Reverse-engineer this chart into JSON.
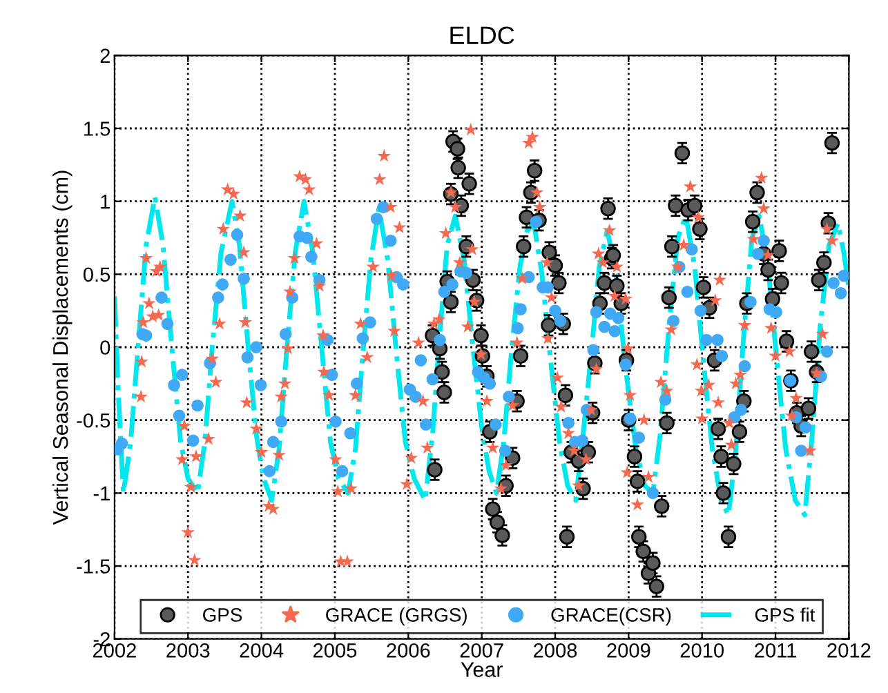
{
  "chart_data": {
    "type": "scatter",
    "title": "ELDC",
    "xlabel": "Year",
    "ylabel": "Vertical Seasonal Displacements (cm)",
    "xlim": [
      2002,
      2012
    ],
    "xticks": [
      2002,
      2003,
      2004,
      2005,
      2006,
      2007,
      2008,
      2009,
      2010,
      2011,
      2012
    ],
    "ylim": [
      -2,
      2
    ],
    "yticks": [
      -2,
      -1.5,
      -1,
      -0.5,
      0,
      0.5,
      1,
      1.5,
      2
    ],
    "grid": true,
    "legend": "bottom",
    "series": [
      {
        "name": "GPS",
        "type": "scatter",
        "marker": "circle",
        "color": "#5a5a5a",
        "x": [
          2006.36,
          2006.33,
          2006.43,
          2006.46,
          2006.49,
          2006.53,
          2006.58,
          2006.61,
          2006.67,
          2006.68,
          2006.58,
          2006.72,
          2006.79,
          2006.83,
          2006.88,
          2006.93,
          2006.99,
          2007.01,
          2007.07,
          2007.11,
          2007.15,
          2007.21,
          2007.28,
          2007.33,
          2007.42,
          2007.48,
          2007.53,
          2007.57,
          2007.61,
          2007.67,
          2007.72,
          2007.78,
          2007.92,
          2008.0,
          2008.05,
          2007.91,
          2008.11,
          2008.14,
          2008.22,
          2008.32,
          2008.38,
          2008.16,
          2008.45,
          2008.51,
          2008.54,
          2008.61,
          2008.67,
          2008.72,
          2008.77,
          2008.84,
          2008.79,
          2008.9,
          2008.97,
          2009.0,
          2009.08,
          2009.12,
          2009.14,
          2009.2,
          2009.27,
          2009.33,
          2009.38,
          2009.45,
          2009.52,
          2009.55,
          2009.59,
          2009.64,
          2009.73,
          2009.81,
          2009.9,
          2009.97,
          2010.02,
          2010.1,
          2010.17,
          2010.22,
          2010.26,
          2010.29,
          2010.36,
          2010.43,
          2010.51,
          2010.57,
          2010.61,
          2010.69,
          2010.75,
          2010.84,
          2010.9,
          2010.96,
          2011.05,
          2011.08,
          2011.15,
          2011.21,
          2011.29,
          2011.35,
          2011.45,
          2011.49,
          2011.56,
          2011.59,
          2011.66,
          2011.72,
          2011.77
        ],
        "values": [
          -0.84,
          0.08,
          -0.01,
          -0.17,
          -0.31,
          0.45,
          0.31,
          1.41,
          1.36,
          1.23,
          1.05,
          0.97,
          0.69,
          1.12,
          0.46,
          0.32,
          0.08,
          -0.06,
          -0.2,
          -0.58,
          -1.11,
          -1.2,
          -1.29,
          -0.95,
          -0.76,
          -0.37,
          -0.06,
          0.69,
          0.89,
          1.06,
          1.21,
          0.87,
          0.65,
          0.56,
          0.44,
          0.15,
          0.16,
          -0.33,
          -0.72,
          -0.78,
          -0.97,
          -1.3,
          -0.72,
          -0.45,
          -0.11,
          0.3,
          0.44,
          0.95,
          0.61,
          0.42,
          0.63,
          0.3,
          -0.09,
          -0.5,
          -0.75,
          -0.92,
          -1.3,
          -1.4,
          -1.55,
          -1.48,
          -1.64,
          -1.09,
          -0.52,
          0.34,
          0.69,
          0.97,
          1.33,
          0.94,
          0.97,
          0.81,
          0.41,
          0.27,
          -0.09,
          -0.56,
          -0.75,
          -1.0,
          -1.3,
          -0.8,
          -0.58,
          -0.37,
          0.3,
          0.86,
          1.06,
          0.64,
          0.53,
          0.33,
          0.66,
          0.44,
          0.04,
          -0.23,
          -0.45,
          -0.54,
          -0.42,
          -0.03,
          -0.17,
          0.46,
          0.58,
          0.85,
          1.4
        ],
        "errors": [
          0.07,
          0.07,
          0.07,
          0.07,
          0.07,
          0.07,
          0.07,
          0.07,
          0.07,
          0.07,
          0.07,
          0.07,
          0.07,
          0.07,
          0.07,
          0.07,
          0.07,
          0.07,
          0.07,
          0.07,
          0.07,
          0.07,
          0.07,
          0.07,
          0.07,
          0.07,
          0.07,
          0.07,
          0.07,
          0.07,
          0.07,
          0.07,
          0.07,
          0.07,
          0.07,
          0.07,
          0.07,
          0.07,
          0.07,
          0.07,
          0.07,
          0.07,
          0.07,
          0.07,
          0.07,
          0.07,
          0.07,
          0.07,
          0.07,
          0.07,
          0.07,
          0.07,
          0.07,
          0.07,
          0.07,
          0.07,
          0.07,
          0.07,
          0.07,
          0.07,
          0.07,
          0.07,
          0.07,
          0.07,
          0.07,
          0.07,
          0.07,
          0.07,
          0.07,
          0.07,
          0.07,
          0.07,
          0.07,
          0.07,
          0.07,
          0.07,
          0.07,
          0.07,
          0.07,
          0.07,
          0.07,
          0.07,
          0.07,
          0.07,
          0.07,
          0.07,
          0.07,
          0.07,
          0.07,
          0.07,
          0.07,
          0.07,
          0.07,
          0.07,
          0.07,
          0.07,
          0.07,
          0.07,
          0.07
        ]
      },
      {
        "name": "GRACE (GRGS)",
        "type": "scatter",
        "marker": "star",
        "color": "#f4694f",
        "x": [
          2002.36,
          2002.37,
          2002.39,
          2002.43,
          2002.47,
          2002.52,
          2002.57,
          2002.6,
          2002.62,
          2002.92,
          2002.95,
          2003.0,
          2003.04,
          2003.09,
          2003.11,
          2003.28,
          2003.33,
          2003.38,
          2003.43,
          2003.48,
          2003.54,
          2003.62,
          2003.71,
          2003.76,
          2003.78,
          2003.8,
          2003.93,
          2004.0,
          2004.1,
          2004.16,
          2004.24,
          2004.27,
          2004.32,
          2004.36,
          2004.39,
          2004.45,
          2004.52,
          2004.6,
          2004.65,
          2004.75,
          2004.79,
          2004.84,
          2004.85,
          2004.92,
          2005.01,
          2005.04,
          2005.08,
          2005.17,
          2005.22,
          2005.28,
          2005.35,
          2005.44,
          2005.52,
          2005.61,
          2005.67,
          2005.76,
          2005.88,
          2005.77,
          2005.81,
          2006.04,
          2005.98,
          2006.14,
          2006.2,
          2006.26,
          2006.35,
          2006.42,
          2006.51,
          2006.58,
          2006.64,
          2006.7,
          2006.85,
          2006.81,
          2006.87,
          2006.9,
          2006.99,
          2007.07,
          2007.15,
          2007.26,
          2007.33,
          2007.42,
          2007.48,
          2007.55,
          2007.64,
          2007.69,
          2007.75,
          2007.79,
          2007.89,
          2007.95,
          2007.9,
          2008.03,
          2008.08,
          2008.18,
          2008.26,
          2008.32,
          2008.42,
          2008.49,
          2008.56,
          2008.59,
          2008.65,
          2008.74,
          2008.81,
          2008.84,
          2008.96,
          2008.99,
          2009.02,
          2008.98,
          2009.12,
          2009.21,
          2009.27,
          2009.44,
          2009.52,
          2009.58,
          2009.67,
          2009.75,
          2009.84,
          2009.95,
          2010.18,
          2010.24,
          2010.09,
          2009.93,
          2009.99,
          2010.0,
          2010.22,
          2010.37,
          2010.4,
          2010.46,
          2010.52,
          2010.58,
          2010.7,
          2010.81,
          2010.84,
          2010.9,
          2010.94,
          2011.0,
          2011.19,
          2011.22,
          2011.28,
          2011.47,
          2011.56,
          2011.64,
          2011.7,
          2011.77
        ],
        "values": [
          -0.34,
          -0.1,
          0.17,
          0.61,
          0.3,
          0.21,
          0.52,
          0.22,
          0.55,
          -0.77,
          -0.54,
          -1.27,
          -0.96,
          -1.46,
          -0.75,
          -0.63,
          -0.08,
          -0.24,
          0.16,
          0.81,
          1.08,
          1.05,
          0.9,
          0.65,
          0.17,
          -0.38,
          -0.56,
          -0.72,
          -1.09,
          -1.11,
          -0.74,
          -0.34,
          -0.25,
          -0.01,
          0.38,
          0.61,
          1.17,
          1.15,
          1.08,
          0.71,
          0.42,
          0.08,
          -0.17,
          -0.33,
          -0.77,
          -0.99,
          -1.47,
          -1.47,
          -0.97,
          -0.33,
          0.16,
          -0.07,
          0.55,
          1.15,
          1.31,
          0.96,
          0.82,
          0.49,
          0.11,
          -0.76,
          -0.94,
          0.03,
          -0.37,
          -0.69,
          0.16,
          0.19,
          0.78,
          1.06,
          0.96,
          0.58,
          1.49,
          0.14,
          0.67,
          0.31,
          -0.05,
          -0.37,
          -0.69,
          -0.97,
          -0.81,
          -0.4,
          0.03,
          0.47,
          1.4,
          1.44,
          1.06,
          0.96,
          0.58,
          0.34,
          0.06,
          -0.21,
          -0.41,
          -0.59,
          -0.71,
          -0.95,
          -0.77,
          -0.43,
          -0.15,
          0.64,
          0.58,
          0.8,
          0.35,
          0.55,
          0.33,
          -0.01,
          -0.33,
          -0.86,
          -1.08,
          -0.5,
          -0.89,
          -0.24,
          -0.3,
          0.12,
          0.55,
          0.7,
          1.1,
          0.89,
          0.32,
          0.46,
          -0.26,
          -0.12,
          -0.3,
          -0.49,
          -0.38,
          -0.52,
          -0.67,
          -0.25,
          -0.19,
          0.15,
          0.74,
          1.16,
          0.95,
          0.63,
          0.13,
          -0.06,
          -0.03,
          -0.47,
          -0.35,
          -0.71,
          -0.18,
          0.09,
          0.81,
          0.73
        ]
      },
      {
        "name": "GRACE(CSR)",
        "type": "scatter",
        "marker": "circle",
        "color": "#3fa9f5",
        "x": [
          2002.04,
          2002.1,
          2002.38,
          2002.43,
          2002.64,
          2002.72,
          2002.81,
          2002.88,
          2002.92,
          2003.07,
          2003.13,
          2003.3,
          2003.41,
          2003.47,
          2003.58,
          2003.67,
          2003.76,
          2003.81,
          2003.93,
          2003.99,
          2004.11,
          2004.16,
          2004.27,
          2004.33,
          2004.42,
          2004.52,
          2004.62,
          2004.68,
          2004.79,
          2004.9,
          2004.96,
          2005.01,
          2005.1,
          2005.21,
          2005.3,
          2005.38,
          2005.48,
          2005.57,
          2005.66,
          2005.76,
          2005.84,
          2005.93,
          2006.02,
          2006.1,
          2006.17,
          2006.24,
          2006.33,
          2006.43,
          2006.49,
          2006.6,
          2006.71,
          2006.79,
          2006.95,
          2007.03,
          2007.11,
          2007.19,
          2007.32,
          2007.37,
          2007.49,
          2007.53,
          2007.64,
          2007.74,
          2007.83,
          2007.9,
          2008.0,
          2008.07,
          2008.18,
          2008.27,
          2008.37,
          2008.43,
          2008.52,
          2008.56,
          2008.67,
          2008.75,
          2008.81,
          2008.86,
          2008.96,
          2009.02,
          2009.14,
          2009.33,
          2009.5,
          2009.61,
          2009.69,
          2009.8,
          2009.86,
          2009.98,
          2010.06,
          2010.21,
          2010.27,
          2010.44,
          2010.53,
          2010.58,
          2010.66,
          2010.76,
          2010.84,
          2010.92,
          2011.01,
          2011.2,
          2011.28,
          2011.35,
          2011.41,
          2011.62,
          2011.7,
          2011.79,
          2011.89,
          2011.93
        ],
        "values": [
          -0.7,
          -0.66,
          0.09,
          0.08,
          0.34,
          0.16,
          -0.26,
          -0.47,
          -0.19,
          -0.64,
          -0.4,
          -0.11,
          0.34,
          0.43,
          0.6,
          0.77,
          0.47,
          -0.07,
          0.0,
          -0.26,
          -0.85,
          -0.65,
          -0.51,
          0.09,
          0.34,
          0.76,
          0.75,
          0.62,
          0.46,
          0.05,
          -0.19,
          -0.51,
          -0.85,
          -0.59,
          -0.25,
          0.06,
          0.17,
          0.88,
          0.96,
          0.73,
          0.48,
          0.43,
          -0.29,
          -0.34,
          -0.09,
          -0.53,
          -0.22,
          0.05,
          0.38,
          0.43,
          0.52,
          0.51,
          -0.17,
          -0.21,
          -0.25,
          -0.53,
          -0.71,
          -0.34,
          0.13,
          0.26,
          0.48,
          0.86,
          0.41,
          0.41,
          0.25,
          0.18,
          -0.52,
          -0.65,
          -0.64,
          -0.43,
          -0.02,
          0.24,
          0.14,
          0.23,
          0.11,
          0.2,
          -0.12,
          -0.49,
          -0.62,
          -1.0,
          -0.36,
          0.18,
          0.55,
          0.38,
          0.67,
          0.25,
          0.05,
          0.05,
          -0.06,
          -0.48,
          -0.43,
          -0.13,
          0.31,
          0.64,
          0.73,
          0.26,
          0.24,
          -0.23,
          -0.48,
          -0.71,
          -0.55,
          -0.2,
          -0.03,
          0.44,
          0.37,
          0.49
        ]
      },
      {
        "name": "GPS fit",
        "type": "line",
        "marker": "none",
        "line_style": "dashed",
        "color": "#00e8ee",
        "x": [
          2002.0,
          2002.05,
          2002.12,
          2002.22,
          2002.32,
          2002.43,
          2002.55,
          2002.66,
          2002.78,
          2002.9,
          2003.0,
          2003.13,
          2003.23,
          2003.33,
          2003.45,
          2003.6,
          2003.7,
          2003.82,
          2003.93,
          2004.03,
          2004.14,
          2004.24,
          2004.34,
          2004.46,
          2004.58,
          2004.7,
          2004.82,
          2004.94,
          2005.05,
          2005.18,
          2005.28,
          2005.38,
          2005.49,
          2005.6,
          2005.72,
          2005.84,
          2005.96,
          2006.08,
          2006.23,
          2006.33,
          2006.43,
          2006.53,
          2006.64,
          2006.76,
          2006.88,
          2007.0,
          2007.1,
          2007.2,
          2007.3,
          2007.41,
          2007.52,
          2007.62,
          2007.71,
          2007.82,
          2007.94,
          2008.06,
          2008.17,
          2008.28,
          2008.38,
          2008.5,
          2008.6,
          2008.71,
          2008.83,
          2008.96,
          2009.1,
          2009.22,
          2009.33,
          2009.43,
          2009.55,
          2009.67,
          2009.78,
          2009.9,
          2010.02,
          2010.14,
          2010.26,
          2010.36,
          2010.46,
          2010.57,
          2010.68,
          2010.78,
          2010.9,
          2011.02,
          2011.14,
          2011.27,
          2011.4,
          2011.5,
          2011.61,
          2011.73,
          2011.85,
          2011.93,
          2012.0
        ],
        "values": [
          0.35,
          -0.3,
          -1.0,
          -0.65,
          0.0,
          0.7,
          1.03,
          0.7,
          0.0,
          -0.65,
          -0.9,
          -1.0,
          -0.65,
          0.0,
          0.65,
          1.0,
          0.7,
          0.0,
          -0.6,
          -0.9,
          -1.05,
          -0.7,
          -0.05,
          0.65,
          1.0,
          0.65,
          0.0,
          -0.65,
          -0.9,
          -1.0,
          -0.7,
          -0.05,
          0.6,
          0.95,
          0.6,
          -0.05,
          -0.65,
          -0.9,
          -1.05,
          -0.6,
          0.1,
          0.7,
          0.9,
          0.6,
          0.0,
          -0.55,
          -0.85,
          -1.0,
          -0.65,
          0.0,
          0.55,
          0.8,
          0.85,
          0.5,
          -0.1,
          -0.65,
          -0.95,
          -1.05,
          -0.6,
          0.0,
          0.55,
          0.8,
          0.5,
          -0.15,
          -0.7,
          -0.95,
          -1.0,
          -0.6,
          0.15,
          0.75,
          0.9,
          0.55,
          -0.1,
          -0.7,
          -1.05,
          -1.15,
          -0.7,
          0.1,
          0.75,
          0.9,
          0.55,
          -0.1,
          -0.7,
          -1.05,
          -1.15,
          -0.6,
          0.15,
          0.7,
          0.85,
          0.65,
          0.4
        ]
      }
    ]
  }
}
